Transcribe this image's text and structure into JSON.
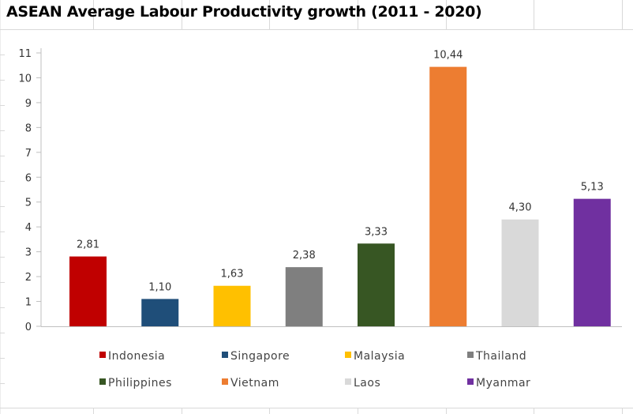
{
  "chart_data": {
    "type": "bar",
    "title": "ASEAN Average Labour Productivity growth (2011 - 2020)",
    "categories": [
      "Indonesia",
      "Singapore",
      "Malaysia",
      "Thailand",
      "Philippines",
      "Vietnam",
      "Laos",
      "Myanmar"
    ],
    "values": [
      2.81,
      1.1,
      1.63,
      2.38,
      3.33,
      10.44,
      4.3,
      5.13
    ],
    "data_labels": [
      "2,81",
      "1,10",
      "1,63",
      "2,38",
      "3,33",
      "10,44",
      "4,30",
      "5,13"
    ],
    "colors": [
      "#C00000",
      "#1F4E79",
      "#FFC000",
      "#7F7F7F",
      "#375623",
      "#ED7D31",
      "#D9D9D9",
      "#7030A0"
    ],
    "ylim": [
      0,
      11
    ],
    "yticks": [
      "0",
      "1",
      "2",
      "3",
      "4",
      "5",
      "6",
      "7",
      "8",
      "9",
      "10",
      "11"
    ],
    "xlabel": "",
    "ylabel": "",
    "grid": false,
    "legend_position": "bottom"
  }
}
